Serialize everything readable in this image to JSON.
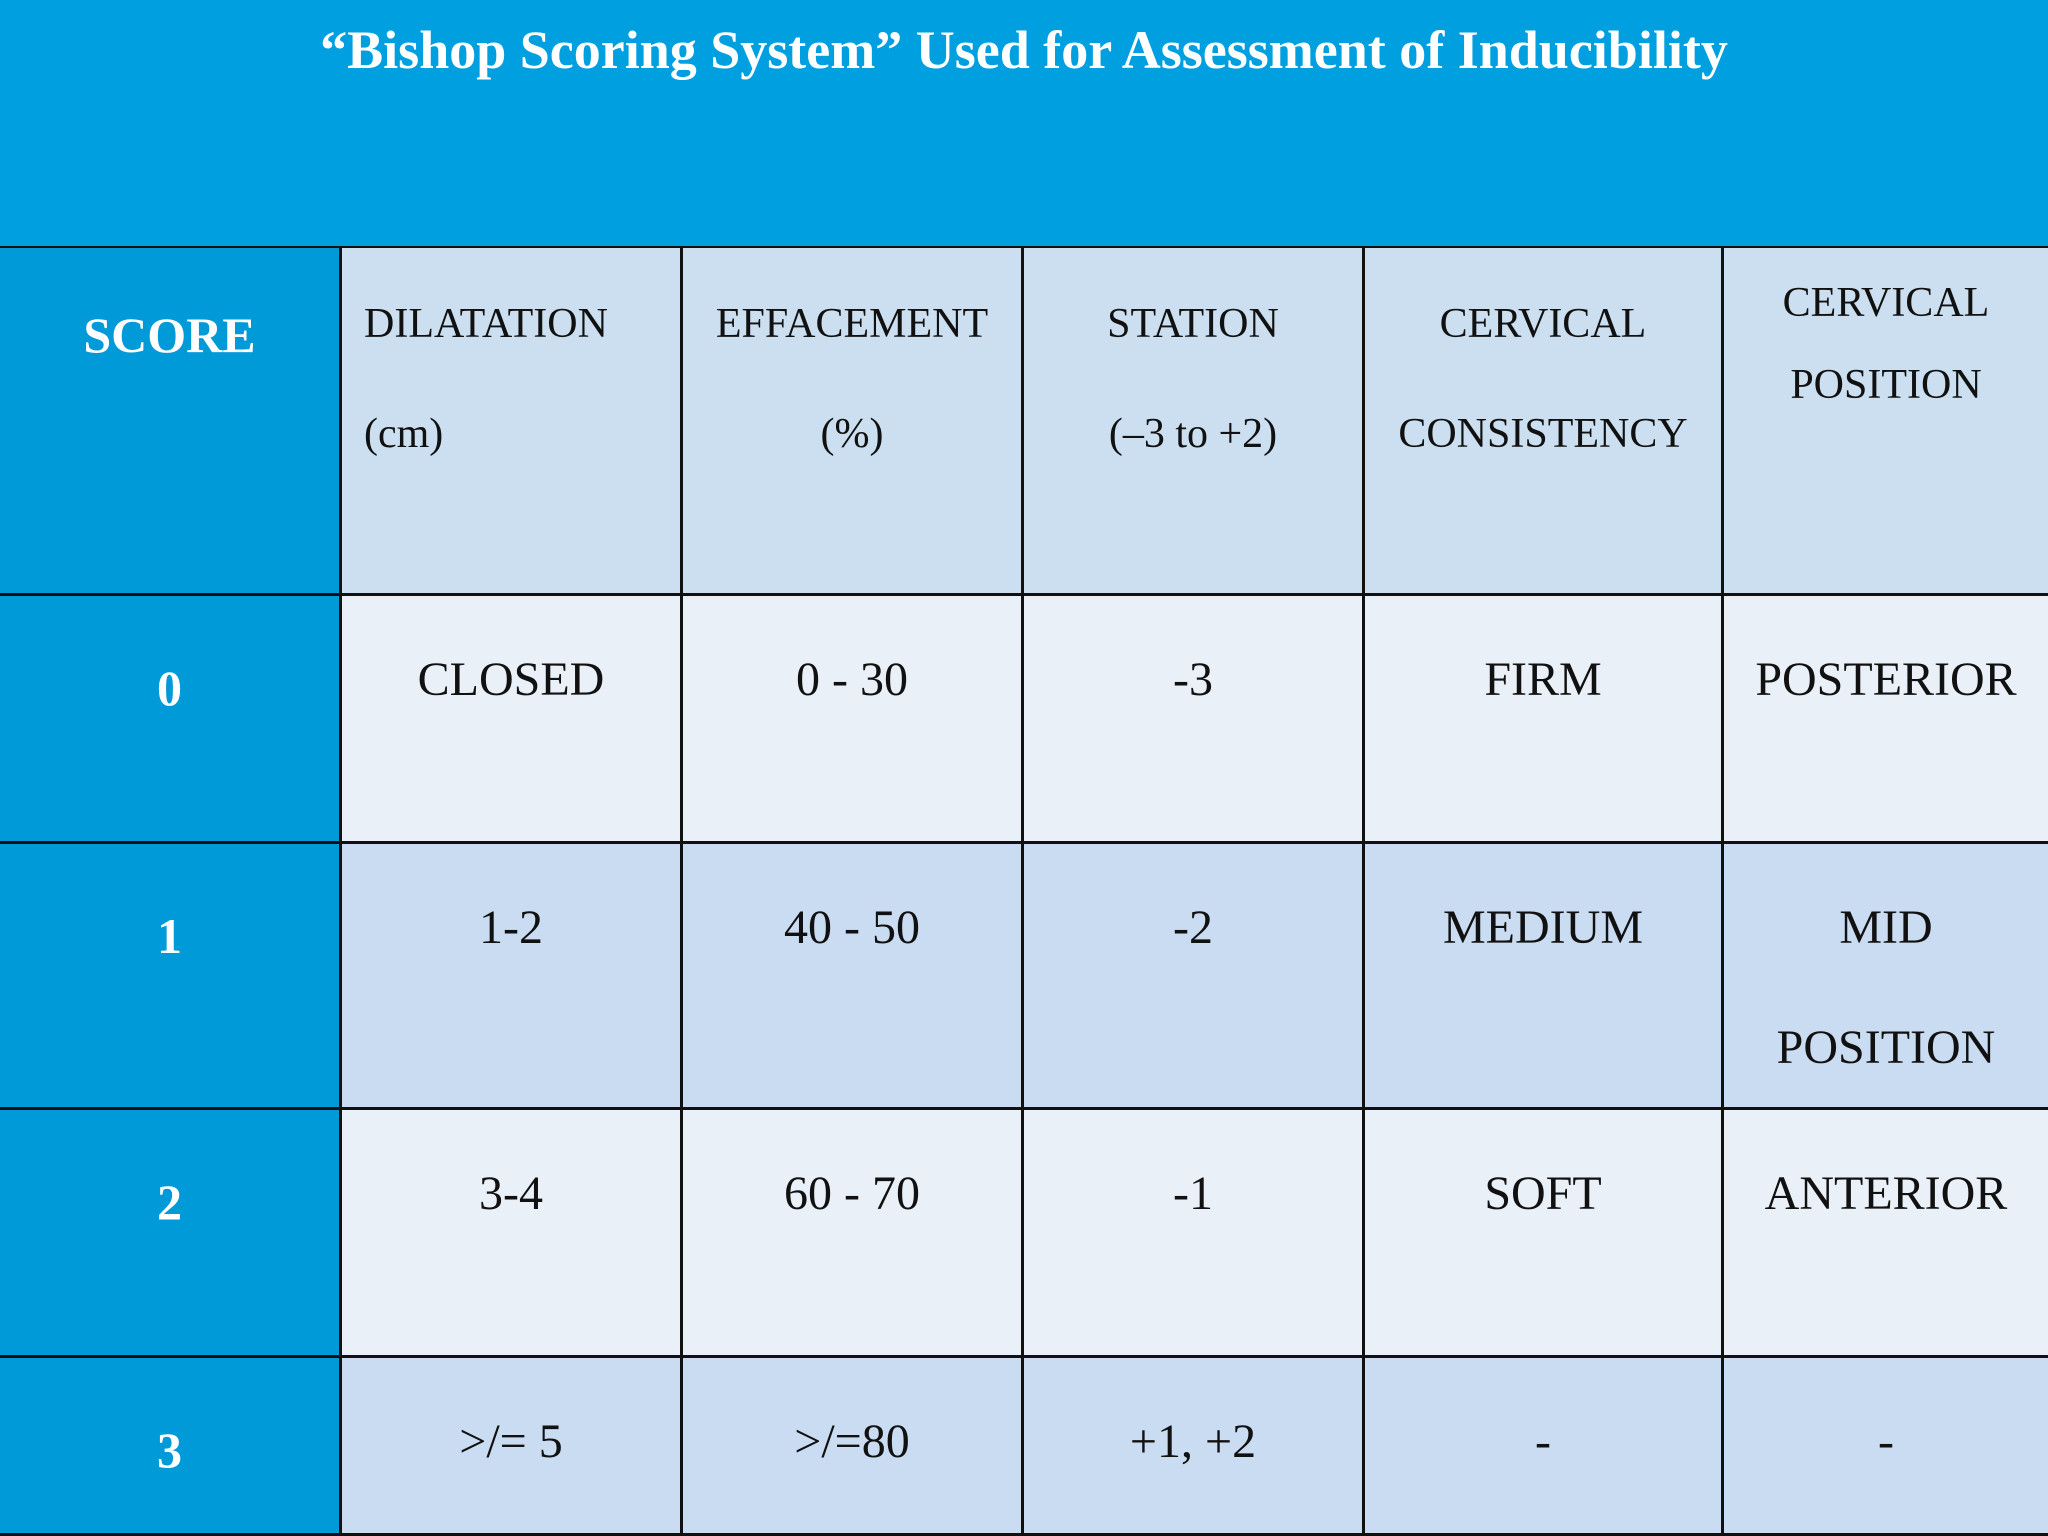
{
  "title": "“Bishop Scoring System” Used for Assessment of Inducibility",
  "colors": {
    "title_bg": "#009fdf",
    "score_column": "#009ad8",
    "header_cells": "#cbdff0",
    "row_light": "#e9f0f8",
    "row_dark": "#cadcf1"
  },
  "headers": {
    "score": "SCORE",
    "dilatation": [
      "DILATATION",
      "(cm)"
    ],
    "effacement": [
      "EFFACEMENT",
      "(%)"
    ],
    "station": [
      "STATION",
      "(–3 to +2)"
    ],
    "consistency": [
      "CERVICAL",
      "CONSISTENCY"
    ],
    "position": [
      "CERVICAL",
      "POSITION"
    ]
  },
  "rows": [
    {
      "score": "0",
      "dilatation": "CLOSED",
      "effacement": "0 - 30",
      "station": "-3",
      "consistency": "FIRM",
      "position": [
        "POSTERIOR"
      ]
    },
    {
      "score": "1",
      "dilatation": "1-2",
      "effacement": "40 - 50",
      "station": "-2",
      "consistency": "MEDIUM",
      "position": [
        "MID",
        "POSITION"
      ]
    },
    {
      "score": "2",
      "dilatation": "3-4",
      "effacement": "60 - 70",
      "station": "-1",
      "consistency": "SOFT",
      "position": [
        "ANTERIOR"
      ]
    },
    {
      "score": "3",
      "dilatation": ">/= 5",
      "effacement": ">/=80",
      "station": "+1, +2",
      "consistency": "-",
      "position": [
        "-"
      ]
    }
  ]
}
